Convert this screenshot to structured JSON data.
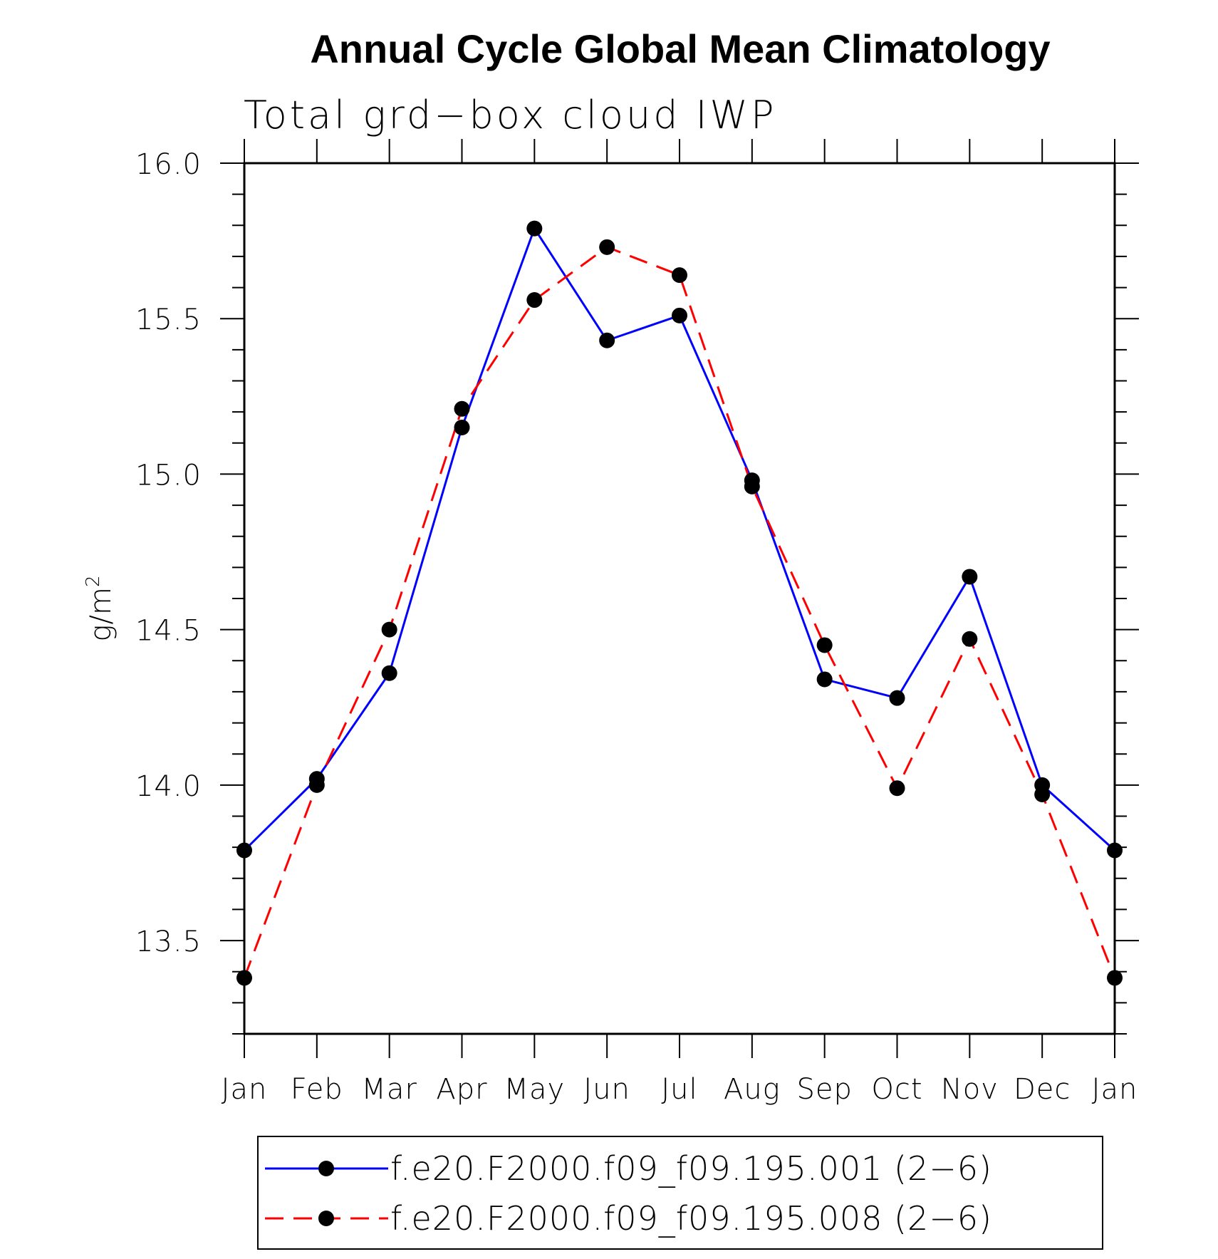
{
  "chart_data": {
    "type": "line",
    "title": "Annual Cycle Global Mean Climatology",
    "subtitle": "Total grd−box cloud IWP",
    "ylabel": "g/m",
    "ylabel_superscript": "2",
    "xlabel": "",
    "categories": [
      "Jan",
      "Feb",
      "Mar",
      "Apr",
      "May",
      "Jun",
      "Jul",
      "Aug",
      "Sep",
      "Oct",
      "Nov",
      "Dec",
      "Jan"
    ],
    "ylim": [
      13.2,
      16.0
    ],
    "yticks": [
      13.5,
      14.0,
      14.5,
      15.0,
      15.5,
      16.0
    ],
    "ytick_labels": [
      "13.5",
      "14.0",
      "14.5",
      "15.0",
      "15.5",
      "16.0"
    ],
    "minor_tick_step": 0.1,
    "grid": false,
    "legend_position": "bottom",
    "series": [
      {
        "name": "f.e20.F2000.f09_f09.195.001 (2−6)",
        "color": "#0000ff",
        "line_style": "solid",
        "marker": "filled-circle",
        "marker_color": "#000000",
        "values": [
          13.79,
          14.02,
          14.36,
          15.15,
          15.79,
          15.43,
          15.51,
          14.98,
          14.34,
          14.28,
          14.67,
          14.0,
          13.79
        ]
      },
      {
        "name": "f.e20.F2000.f09_f09.195.008 (2−6)",
        "color": "#ff0000",
        "line_style": "dashed",
        "marker": "filled-circle",
        "marker_color": "#000000",
        "values": [
          13.38,
          14.0,
          14.5,
          15.21,
          15.56,
          15.73,
          15.64,
          14.96,
          14.45,
          13.99,
          14.47,
          13.97,
          13.38
        ]
      }
    ]
  }
}
